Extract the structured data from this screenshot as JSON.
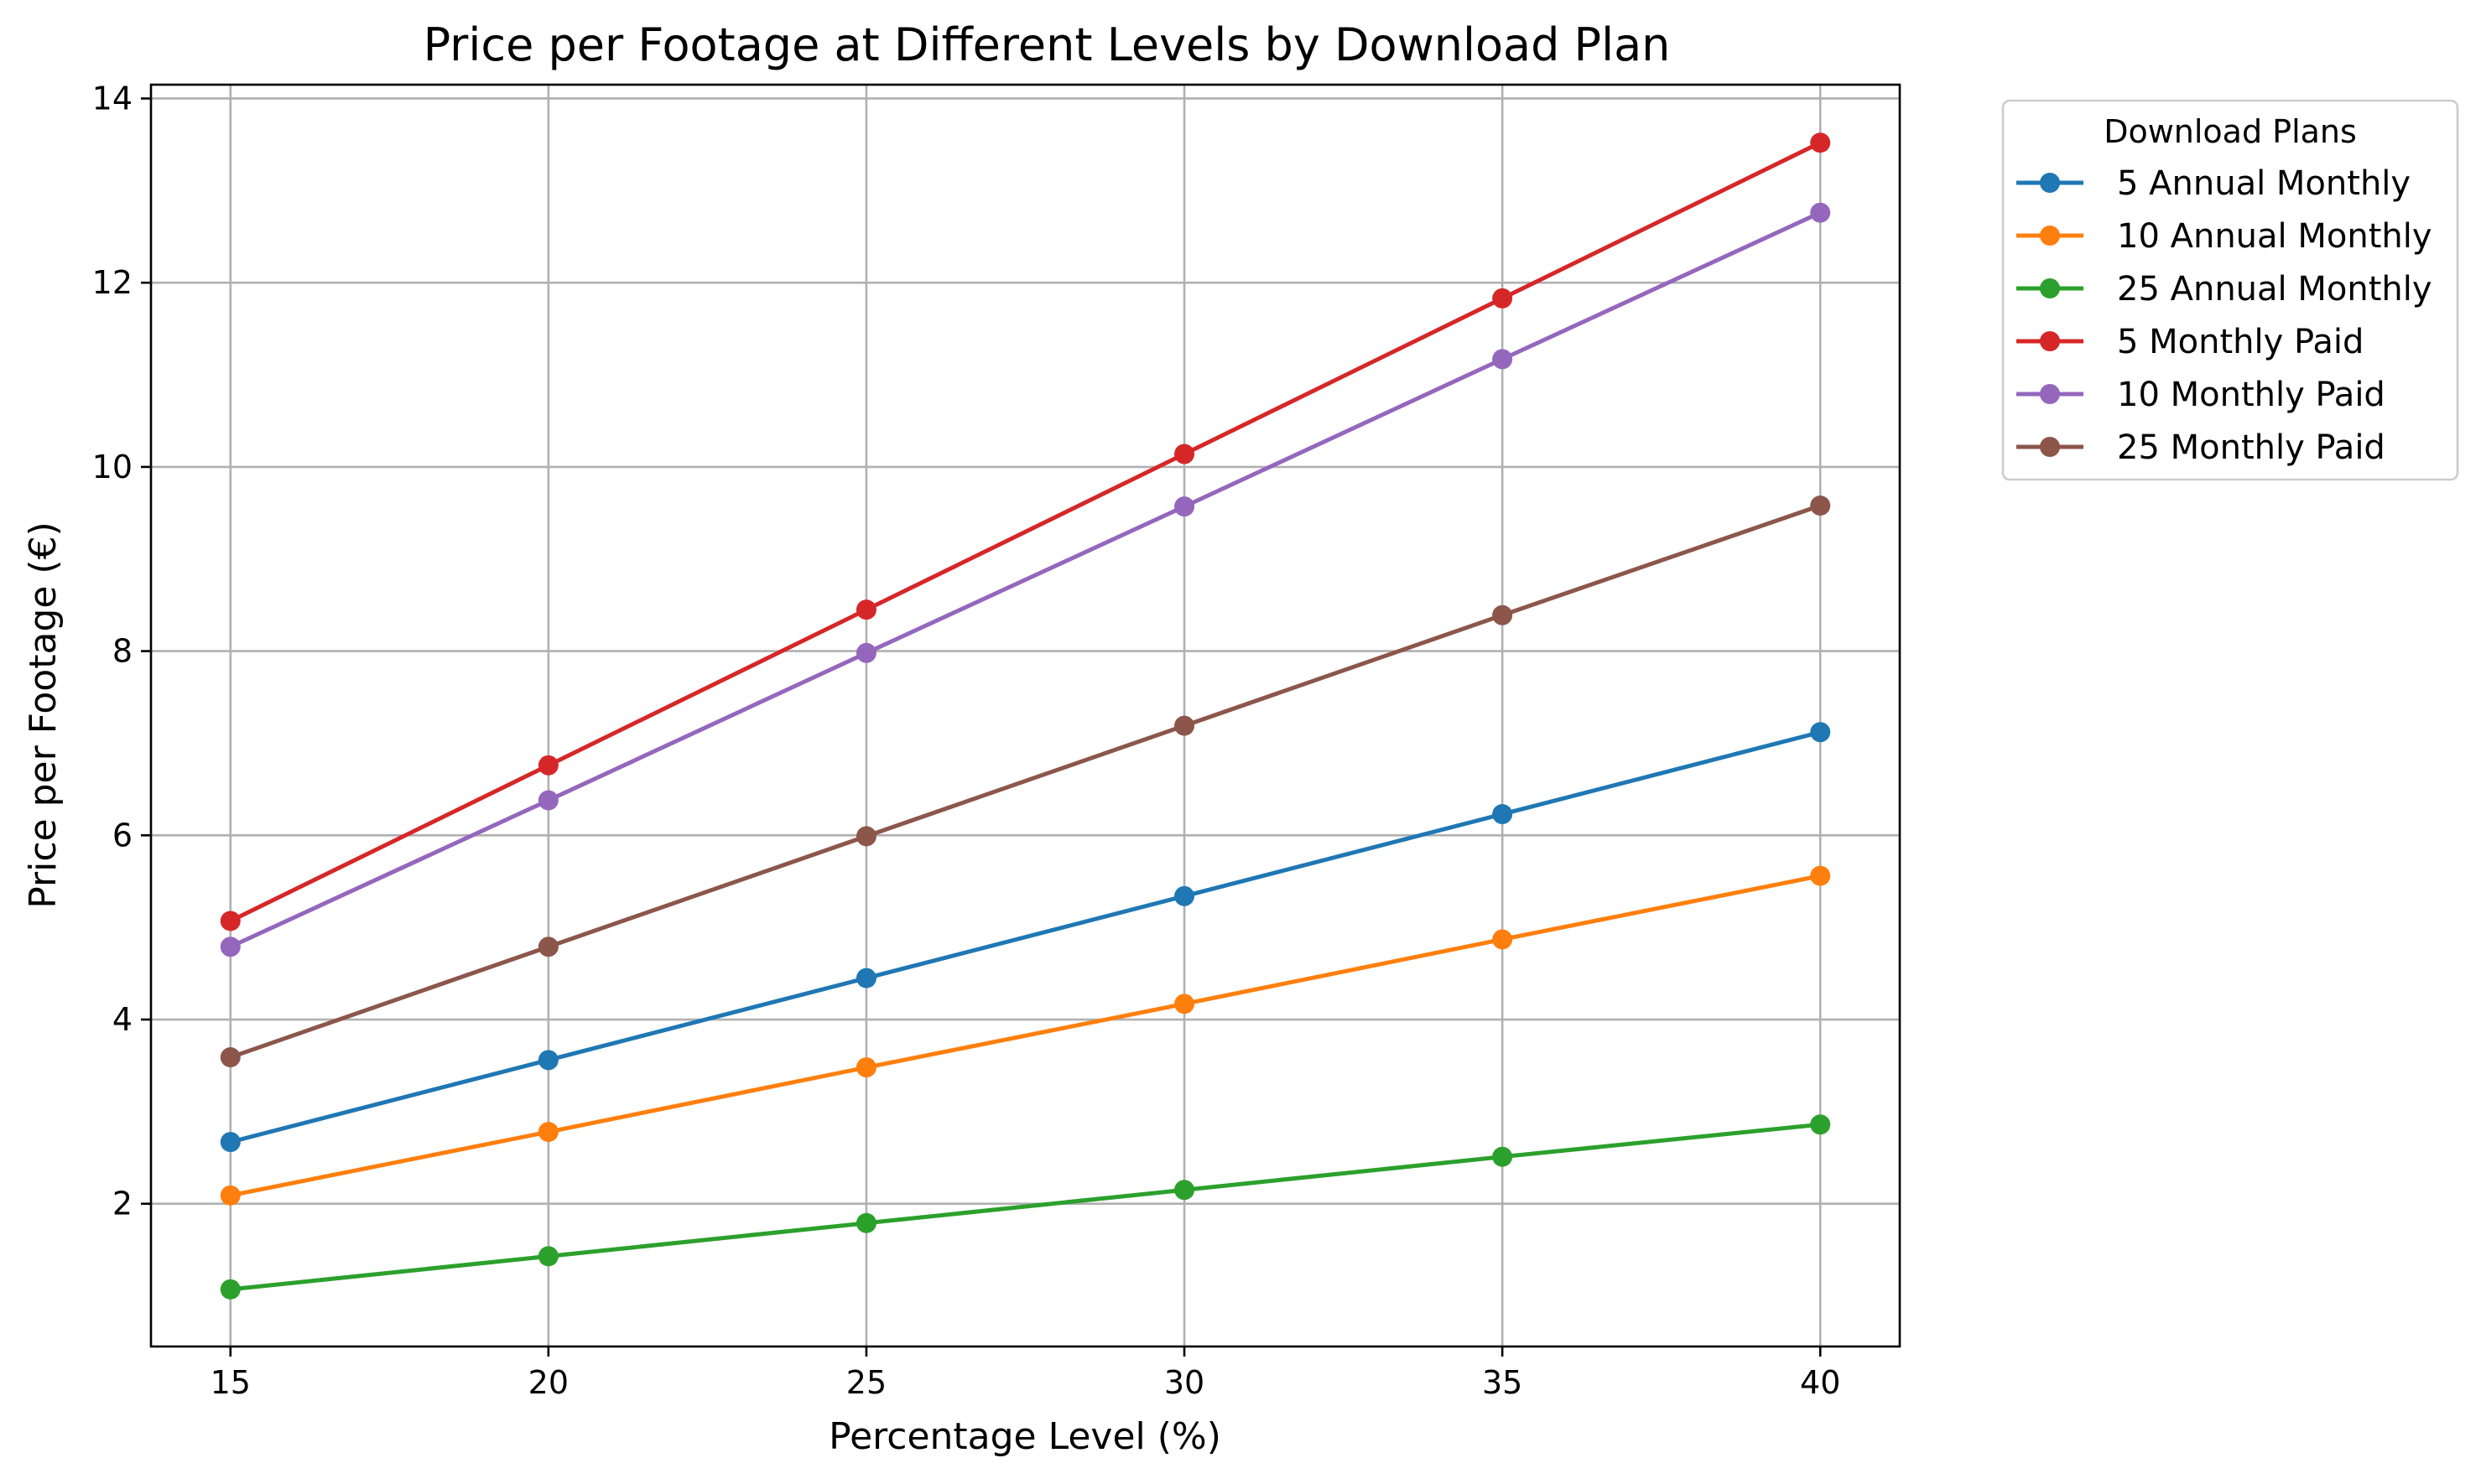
{
  "chart_data": {
    "type": "line",
    "title": "Price per Footage at Different Levels by Download Plan",
    "xlabel": "Percentage Level (%)",
    "ylabel": "Price per Footage (€)",
    "x": [
      15,
      20,
      25,
      30,
      35,
      40
    ],
    "xticks": [
      15,
      20,
      25,
      30,
      35,
      40
    ],
    "yticks": [
      2,
      4,
      6,
      8,
      10,
      12,
      14
    ],
    "xlim": [
      13.75,
      41.25
    ],
    "ylim": [
      0.45,
      14.15
    ],
    "grid": true,
    "legend": {
      "title": "Download Plans",
      "placement": "outside-top-right"
    },
    "series": [
      {
        "name": "5 Annual Monthly",
        "color": "#1f77b4",
        "values": [
          2.67,
          3.56,
          4.45,
          5.34,
          6.23,
          7.12
        ]
      },
      {
        "name": "10 Annual Monthly",
        "color": "#ff7f0e",
        "values": [
          2.09,
          2.78,
          3.48,
          4.17,
          4.87,
          5.56
        ]
      },
      {
        "name": "25 Annual Monthly",
        "color": "#2ca02c",
        "values": [
          1.07,
          1.43,
          1.79,
          2.15,
          2.51,
          2.86
        ]
      },
      {
        "name": "5 Monthly Paid",
        "color": "#d62728",
        "values": [
          5.07,
          6.76,
          8.45,
          10.14,
          11.83,
          13.52
        ]
      },
      {
        "name": "10 Monthly Paid",
        "color": "#9467bd",
        "values": [
          4.79,
          6.38,
          7.98,
          9.57,
          11.17,
          12.76
        ]
      },
      {
        "name": "25 Monthly Paid",
        "color": "#8c564b",
        "values": [
          3.59,
          4.79,
          5.99,
          7.19,
          8.39,
          9.58
        ]
      }
    ]
  }
}
